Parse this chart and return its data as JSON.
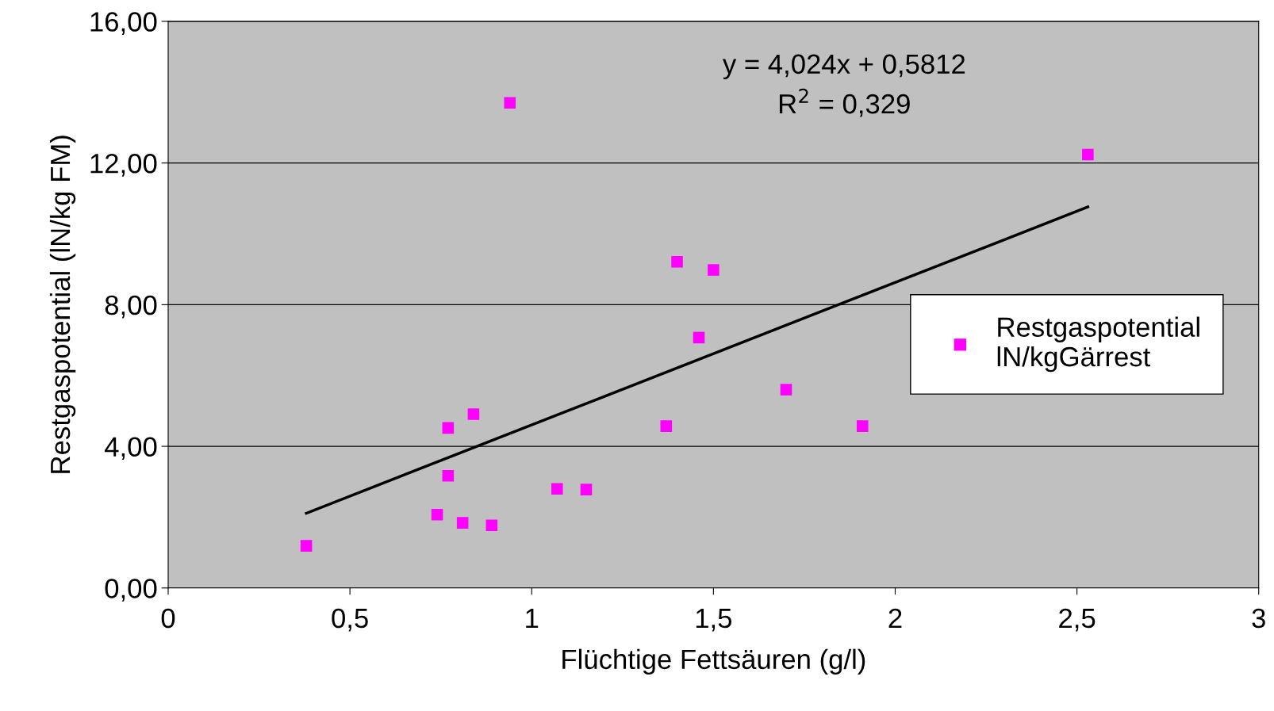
{
  "chart_data": {
    "type": "scatter",
    "xlabel": "Flüchtige Fettsäuren (g/l)",
    "ylabel": "Restgaspotential (lN/kg FM)",
    "series": [
      {
        "name": "Restgaspotential\nlN/kgGärrest",
        "color": "#ff00ff",
        "marker": "square",
        "x": [
          0.38,
          0.94,
          2.53,
          1.4,
          1.5,
          1.46,
          1.7,
          1.91,
          1.37,
          0.84,
          0.77,
          0.77,
          0.74,
          0.81,
          0.89,
          1.07,
          1.15
        ],
        "values": [
          1.19,
          13.7,
          12.24,
          9.21,
          8.98,
          7.07,
          5.6,
          4.57,
          4.57,
          4.91,
          4.52,
          3.17,
          2.07,
          1.84,
          1.77,
          2.8,
          2.78
        ]
      },
      {
        "type": "line",
        "color": "#000000",
        "marker": "none",
        "line_style": "solid",
        "x": [
          0.38,
          2.53
        ],
        "values": [
          2.11,
          10.76
        ]
      }
    ],
    "annotations": [
      "y = 4,024x + 0,5812\nR$^{2}$ = 0,329"
    ],
    "xlim": [
      0,
      3
    ],
    "xticks": [
      0,
      {
        "value": 0.5,
        "label": "0,5"
      },
      1,
      {
        "value": 1.5,
        "label": "1,5"
      },
      2,
      {
        "value": 2.5,
        "label": "2,5"
      },
      3
    ],
    "ylim": [
      0,
      16
    ],
    "yticks": [
      {
        "value": 0,
        "label": "0,00"
      },
      {
        "value": 4,
        "label": "4,00"
      },
      {
        "value": 8,
        "label": "8,00"
      },
      {
        "value": 12,
        "label": "12,00"
      },
      {
        "value": 16,
        "label": "16,00"
      }
    ],
    "grid": "y",
    "legend": "right"
  }
}
